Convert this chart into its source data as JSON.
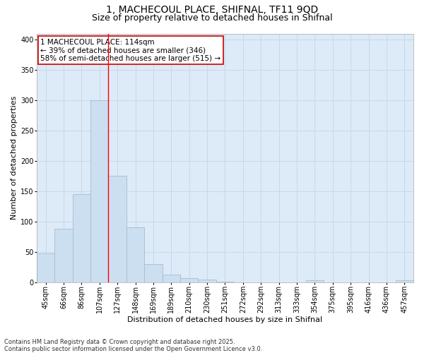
{
  "title_line1": "1, MACHECOUL PLACE, SHIFNAL, TF11 9QD",
  "title_line2": "Size of property relative to detached houses in Shifnal",
  "xlabel": "Distribution of detached houses by size in Shifnal",
  "ylabel": "Number of detached properties",
  "bar_labels": [
    "45sqm",
    "66sqm",
    "86sqm",
    "107sqm",
    "127sqm",
    "148sqm",
    "169sqm",
    "189sqm",
    "210sqm",
    "230sqm",
    "251sqm",
    "272sqm",
    "292sqm",
    "313sqm",
    "333sqm",
    "354sqm",
    "375sqm",
    "395sqm",
    "416sqm",
    "436sqm",
    "457sqm"
  ],
  "bar_values": [
    47,
    88,
    145,
    300,
    175,
    90,
    30,
    13,
    7,
    4,
    1,
    0,
    0,
    0,
    0,
    3,
    0,
    0,
    0,
    0,
    3
  ],
  "bar_color": "#ccdff0",
  "bar_edge_color": "#a0bdd8",
  "grid_color": "#c8d8e8",
  "background_color": "#ddeaf7",
  "fig_background": "#ffffff",
  "red_line_x": 3.5,
  "annotation_text": "1 MACHECOUL PLACE: 114sqm\n← 39% of detached houses are smaller (346)\n58% of semi-detached houses are larger (515) →",
  "annotation_box_color": "#ffffff",
  "annotation_box_edge": "#cc0000",
  "ylim": [
    0,
    410
  ],
  "yticks": [
    0,
    50,
    100,
    150,
    200,
    250,
    300,
    350,
    400
  ],
  "footnote": "Contains HM Land Registry data © Crown copyright and database right 2025.\nContains public sector information licensed under the Open Government Licence v3.0.",
  "title_fontsize": 10,
  "subtitle_fontsize": 9,
  "axis_label_fontsize": 8,
  "tick_fontsize": 7,
  "annotation_fontsize": 7.5,
  "footnote_fontsize": 6
}
